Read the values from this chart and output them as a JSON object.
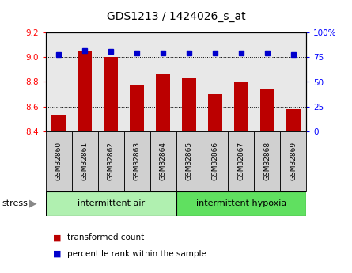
{
  "title": "GDS1213 / 1424026_s_at",
  "samples": [
    "GSM32860",
    "GSM32861",
    "GSM32862",
    "GSM32863",
    "GSM32864",
    "GSM32865",
    "GSM32866",
    "GSM32867",
    "GSM32868",
    "GSM32869"
  ],
  "transformed_count": [
    8.53,
    9.05,
    9.0,
    8.77,
    8.87,
    8.83,
    8.7,
    8.8,
    8.74,
    8.58
  ],
  "percentile_rank": [
    78,
    82,
    81,
    79,
    79,
    79,
    79,
    79,
    79,
    78
  ],
  "ylim_left": [
    8.4,
    9.2
  ],
  "ylim_right": [
    0,
    100
  ],
  "yticks_left": [
    8.4,
    8.6,
    8.8,
    9.0,
    9.2
  ],
  "yticks_right": [
    0,
    25,
    50,
    75,
    100
  ],
  "bar_color": "#bb0000",
  "dot_color": "#0000cc",
  "plot_bg_color": "#e8e8e8",
  "sample_box_color": "#d0d0d0",
  "group1_label": "intermittent air",
  "group2_label": "intermittent hypoxia",
  "group1_color": "#b0f0b0",
  "group2_color": "#60e060",
  "stress_label": "stress",
  "arrow_color": "#888888",
  "legend_bar_label": "transformed count",
  "legend_dot_label": "percentile rank within the sample",
  "n_group1": 5,
  "n_group2": 5
}
